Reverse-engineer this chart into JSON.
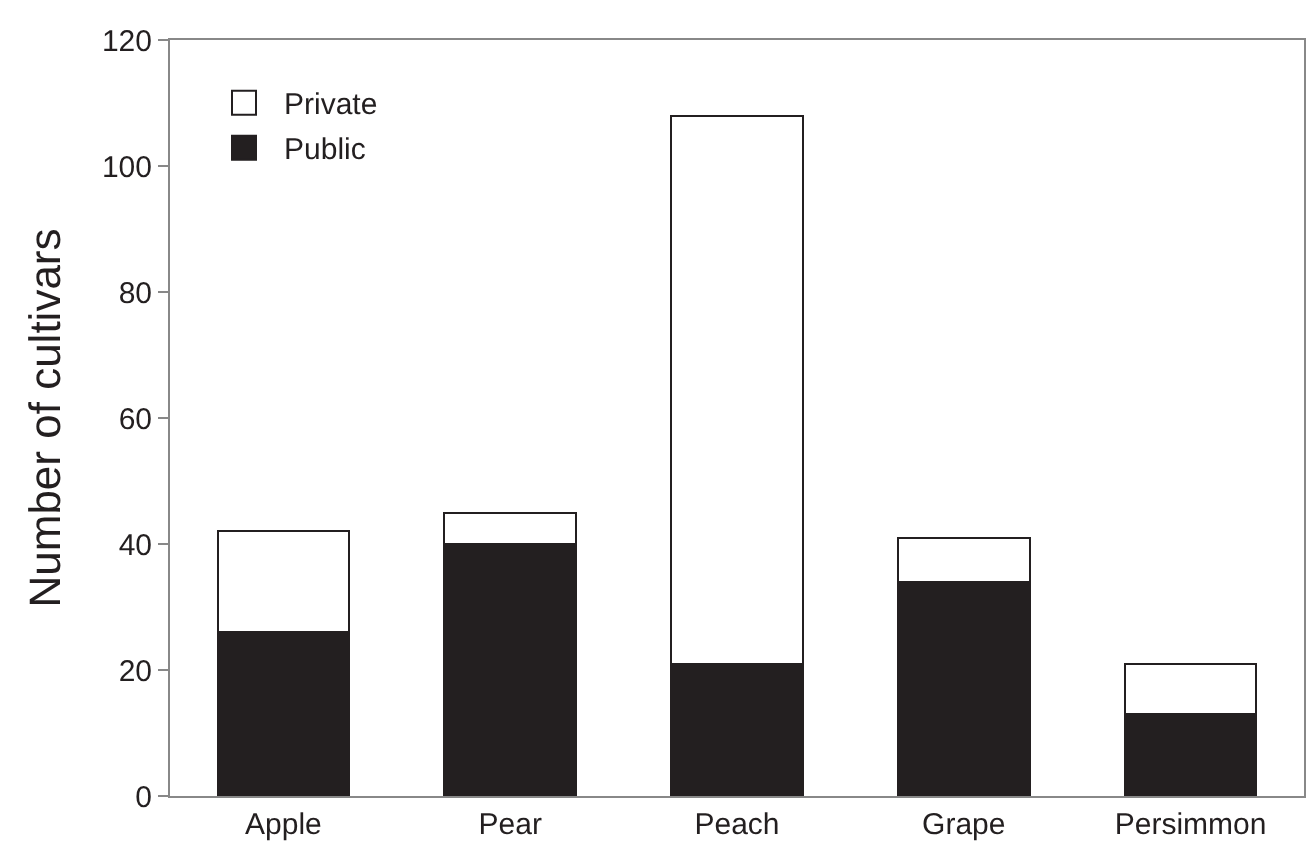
{
  "chart_data": {
    "type": "bar",
    "ylabel": "Number of cultivars",
    "categories": [
      "Apple",
      "Pear",
      "Peach",
      "Grape",
      "Persimmon"
    ],
    "series": [
      {
        "name": "Public",
        "color": "#231f20",
        "values": [
          26,
          40,
          21,
          34,
          13
        ]
      },
      {
        "name": "Private",
        "color": "#ffffff",
        "values": [
          16,
          5,
          87,
          7,
          8
        ]
      }
    ],
    "stacked": true,
    "ylim": [
      0,
      120
    ],
    "yticks": [
      0,
      20,
      40,
      60,
      80,
      100,
      120
    ],
    "grid": false,
    "legend": "top left"
  }
}
